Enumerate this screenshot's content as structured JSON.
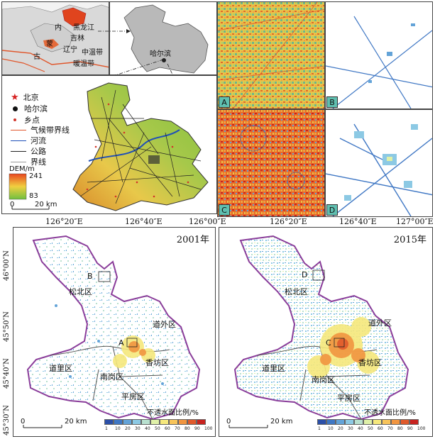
{
  "inset_map": {
    "provinces": [
      "黑龙江",
      "吉林",
      "辽宁",
      "内",
      "蒙",
      "古"
    ],
    "zones": [
      "中温带",
      "暖温带"
    ]
  },
  "heilongjiang_map": {
    "city_label": "哈尔滨"
  },
  "detail_map": {
    "legend": {
      "items": [
        {
          "symbol": "star",
          "label": "北京"
        },
        {
          "symbol": "dot",
          "label": "哈尔滨"
        },
        {
          "symbol": "small-dot",
          "label": "乡点"
        },
        {
          "symbol": "orange-line",
          "label": "气候带界线"
        },
        {
          "symbol": "blue-line",
          "label": "河流"
        },
        {
          "symbol": "black-line",
          "label": "公路"
        },
        {
          "symbol": "gray-line",
          "label": "界线"
        }
      ],
      "dem_title": "DEM/m",
      "dem_max": "241",
      "dem_min": "83",
      "scale": {
        "zero": "0",
        "label": "20 km"
      }
    }
  },
  "thumbnail_tags": [
    "A",
    "B",
    "C",
    "D"
  ],
  "top_coords": [
    "126°20″E",
    "126°40″E",
    "126°00″E",
    "126°20″E",
    "126°40″E",
    "127°00″E"
  ],
  "left_coords": [
    "46°00″N",
    "45°50″N",
    "45°40″N",
    "45°30″N"
  ],
  "maps": [
    {
      "year": "2001年",
      "box_label": "B",
      "center_label": "A",
      "districts": [
        "松北区",
        "道外区",
        "道里区",
        "香坊区",
        "南岗区",
        "平房区"
      ],
      "legend_title": "不透水面比例/%",
      "scale": {
        "zero": "0",
        "label": "20 km"
      }
    },
    {
      "year": "2015年",
      "box_label": "D",
      "center_label": "C",
      "districts": [
        "松北区",
        "道外区",
        "道里区",
        "香坊区",
        "南岗区",
        "平房区"
      ],
      "legend_title": "不透水面比例/%",
      "scale": {
        "zero": "0",
        "label": "20 km"
      }
    }
  ],
  "colorbar": {
    "ticks": [
      "1",
      "10",
      "20",
      "30",
      "40",
      "50",
      "60",
      "70",
      "80",
      "90",
      "100"
    ],
    "colors": [
      "#2b4fa8",
      "#3f77c4",
      "#63a3d8",
      "#8cc9e4",
      "#b8e0cf",
      "#dff0a8",
      "#f6e87c",
      "#f8c45a",
      "#f19540",
      "#e05a2b",
      "#c8231f"
    ]
  }
}
